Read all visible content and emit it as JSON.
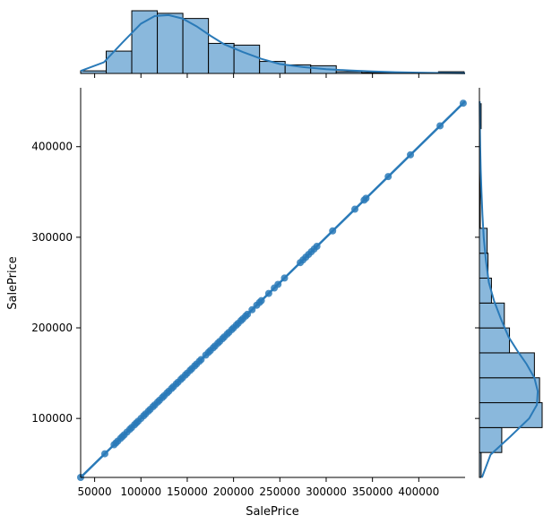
{
  "chart_data": {
    "type": "scatter",
    "layout": "jointplot",
    "xlabel": "SalePrice",
    "ylabel": "SalePrice",
    "xlim": [
      34900,
      450000
    ],
    "ylim": [
      34900,
      465000
    ],
    "x_ticks": [
      50000,
      100000,
      150000,
      200000,
      250000,
      300000,
      350000,
      400000
    ],
    "x_tick_labels": [
      "50000",
      "100000",
      "150000",
      "200000",
      "250000",
      "300000",
      "350000",
      "400000"
    ],
    "y_ticks": [
      100000,
      200000,
      300000,
      400000
    ],
    "y_tick_labels": [
      "100000",
      "200000",
      "300000",
      "400000"
    ],
    "grid": false,
    "color": "#2a7ab8",
    "hist_fill": "#8ab8dc",
    "regression_line": {
      "x": [
        34900,
        450000
      ],
      "y": [
        34900,
        450000
      ]
    },
    "points": [
      34900,
      61000,
      71000,
      73000,
      75000,
      78000,
      80000,
      82000,
      85000,
      88000,
      90000,
      93000,
      95000,
      97000,
      100000,
      103000,
      105000,
      108000,
      110000,
      113000,
      115000,
      118000,
      120000,
      123000,
      125000,
      128000,
      130000,
      133000,
      135000,
      138000,
      140000,
      143000,
      145000,
      148000,
      150000,
      153000,
      155000,
      158000,
      160000,
      163000,
      165000,
      170000,
      173000,
      175000,
      178000,
      180000,
      183000,
      185000,
      188000,
      190000,
      193000,
      195000,
      198000,
      200000,
      203000,
      205000,
      208000,
      210000,
      213000,
      215000,
      220000,
      225000,
      228000,
      230000,
      238000,
      244000,
      248000,
      255000,
      272000,
      275000,
      278000,
      281000,
      284000,
      287000,
      290000,
      307000,
      331000,
      341000,
      343000,
      367000,
      391000,
      423000,
      448000
    ],
    "x_hist": {
      "bin_edges": [
        34900,
        62500,
        90100,
        117700,
        145300,
        172900,
        200500,
        228100,
        255700,
        283300,
        310900,
        338500,
        366100,
        393700,
        421300,
        448900
      ],
      "counts": [
        3,
        26,
        73,
        70,
        64,
        35,
        33,
        14,
        10,
        9,
        2,
        1,
        1,
        0,
        2
      ]
    },
    "y_hist": {
      "bin_edges": [
        34900,
        62400,
        89900,
        117400,
        144900,
        172400,
        199900,
        227400,
        254900,
        282400,
        309900,
        337400,
        364900,
        392400,
        419900,
        447400
      ],
      "counts": [
        2,
        26,
        73,
        70,
        64,
        35,
        29,
        14,
        10,
        9,
        1,
        1,
        1,
        0,
        2
      ]
    },
    "x_kde": {
      "x": [
        34900,
        60000,
        80000,
        100000,
        115000,
        130000,
        145000,
        160000,
        175000,
        190000,
        210000,
        230000,
        250000,
        275000,
        300000,
        325000,
        350000,
        375000,
        400000,
        425000,
        450000
      ],
      "density": [
        3,
        13,
        36,
        58,
        67,
        68,
        64,
        55,
        44,
        34,
        25,
        17,
        11,
        7.5,
        5,
        3.5,
        2.4,
        1.5,
        0.9,
        0.5,
        0.3
      ]
    },
    "y_kde": {
      "y": [
        34900,
        60000,
        80000,
        100000,
        115000,
        130000,
        145000,
        160000,
        175000,
        190000,
        210000,
        230000,
        250000,
        275000,
        300000,
        325000,
        350000,
        375000,
        400000,
        425000,
        450000
      ],
      "density": [
        3,
        13,
        36,
        58,
        67,
        68,
        64,
        55,
        44,
        34,
        25,
        17,
        11,
        7.5,
        5,
        3.5,
        2.4,
        1.5,
        0.9,
        0.5,
        0.3
      ]
    }
  }
}
